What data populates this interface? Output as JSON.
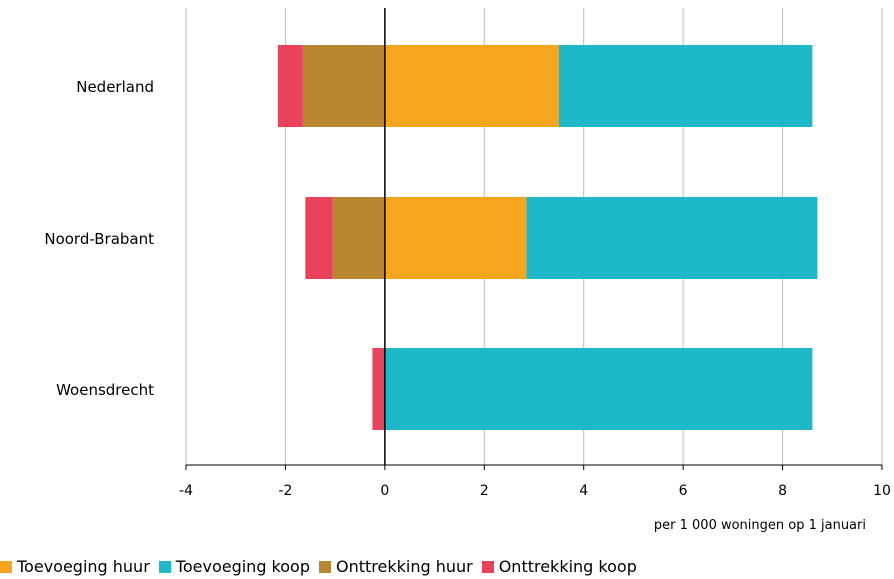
{
  "chart_data": {
    "type": "bar",
    "orientation": "horizontal",
    "stacked": true,
    "categories": [
      "Nederland",
      "Noord-Brabant",
      "Woensdrecht"
    ],
    "series": [
      {
        "name": "Toevoeging huur",
        "color": "#F5A51E",
        "values": [
          3.5,
          2.85,
          0
        ]
      },
      {
        "name": "Toevoeging koop",
        "color": "#1EB9C8",
        "values": [
          5.1,
          5.85,
          8.6
        ]
      },
      {
        "name": "Onttrekking huur",
        "color": "#B8862E",
        "values": [
          -1.65,
          -1.05,
          0
        ]
      },
      {
        "name": "Onttrekking koop",
        "color": "#E8435A",
        "values": [
          -0.5,
          -0.55,
          -0.25
        ]
      }
    ],
    "xlim": [
      -4,
      10
    ],
    "xticks": [
      "-4",
      "-2",
      "0",
      "2",
      "4",
      "6",
      "8",
      "10"
    ],
    "unit_label": "per 1 000 woningen op 1 januari",
    "grid": true,
    "legend_position": "bottom"
  }
}
